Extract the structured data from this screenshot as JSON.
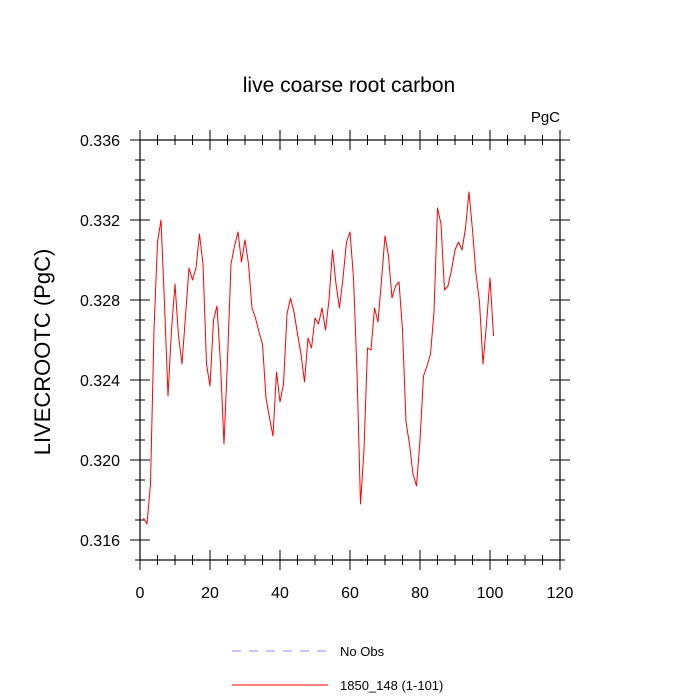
{
  "chart_data": {
    "type": "line",
    "title": "live coarse root carbon",
    "units_label": "PgC",
    "ylabel": "LIVECROOTC  (PgC)",
    "xlabel": "",
    "xlim": [
      0,
      120
    ],
    "ylim": [
      0.315,
      0.336
    ],
    "x_ticks": [
      0,
      20,
      40,
      60,
      80,
      100,
      120
    ],
    "x_tick_labels": [
      "0",
      "20",
      "40",
      "60",
      "80",
      "100",
      "120"
    ],
    "y_ticks": [
      0.316,
      0.32,
      0.324,
      0.328,
      0.332,
      0.336
    ],
    "y_tick_labels": [
      "0.316",
      "0.320",
      "0.324",
      "0.328",
      "0.332",
      "0.336"
    ],
    "grid": false,
    "legend_position": "bottom-center",
    "legend": [
      {
        "name": "No Obs",
        "color": "#8888ff",
        "dash": true
      },
      {
        "name": "1850_148 (1-101)",
        "color": "#ff0000",
        "dash": false
      }
    ],
    "series": [
      {
        "name": "1850_148 (1-101)",
        "color": "#ff0000",
        "x": [
          1,
          2,
          3,
          4,
          5,
          6,
          7,
          8,
          9,
          10,
          11,
          12,
          13,
          14,
          15,
          16,
          17,
          18,
          19,
          20,
          21,
          22,
          23,
          24,
          25,
          26,
          27,
          28,
          29,
          30,
          31,
          32,
          33,
          34,
          35,
          36,
          37,
          38,
          39,
          40,
          41,
          42,
          43,
          44,
          45,
          46,
          47,
          48,
          49,
          50,
          51,
          52,
          53,
          54,
          55,
          56,
          57,
          58,
          59,
          60,
          61,
          62,
          63,
          64,
          65,
          66,
          67,
          68,
          69,
          70,
          71,
          72,
          73,
          74,
          75,
          76,
          77,
          78,
          79,
          80,
          81,
          82,
          83,
          84,
          85,
          86,
          87,
          88,
          89,
          90,
          91,
          92,
          93,
          94,
          95,
          96,
          97,
          98,
          99,
          100,
          101
        ],
        "y": [
          0.3171,
          0.3168,
          0.3188,
          0.3265,
          0.3309,
          0.332,
          0.3278,
          0.3232,
          0.3265,
          0.3288,
          0.3262,
          0.3248,
          0.3272,
          0.3296,
          0.329,
          0.3296,
          0.3313,
          0.3298,
          0.3248,
          0.3237,
          0.327,
          0.3277,
          0.3248,
          0.3208,
          0.325,
          0.3298,
          0.3307,
          0.3314,
          0.3299,
          0.331,
          0.3298,
          0.3276,
          0.3271,
          0.3264,
          0.3258,
          0.3231,
          0.3221,
          0.3212,
          0.3244,
          0.3229,
          0.3238,
          0.3273,
          0.3281,
          0.3274,
          0.3263,
          0.3253,
          0.3239,
          0.3261,
          0.3256,
          0.3271,
          0.3268,
          0.3276,
          0.3265,
          0.328,
          0.3305,
          0.3288,
          0.3276,
          0.3291,
          0.3309,
          0.3314,
          0.3291,
          0.3244,
          0.3178,
          0.3205,
          0.3256,
          0.3255,
          0.3276,
          0.3269,
          0.329,
          0.3312,
          0.3302,
          0.3281,
          0.3287,
          0.3289,
          0.3265,
          0.3219,
          0.3208,
          0.3193,
          0.3187,
          0.321,
          0.3242,
          0.3247,
          0.3253,
          0.3274,
          0.3326,
          0.3318,
          0.3285,
          0.3287,
          0.3295,
          0.3305,
          0.3309,
          0.3305,
          0.3316,
          0.3334,
          0.3315,
          0.3293,
          0.3279,
          0.3248,
          0.3268,
          0.3291,
          0.3262
        ]
      }
    ]
  }
}
